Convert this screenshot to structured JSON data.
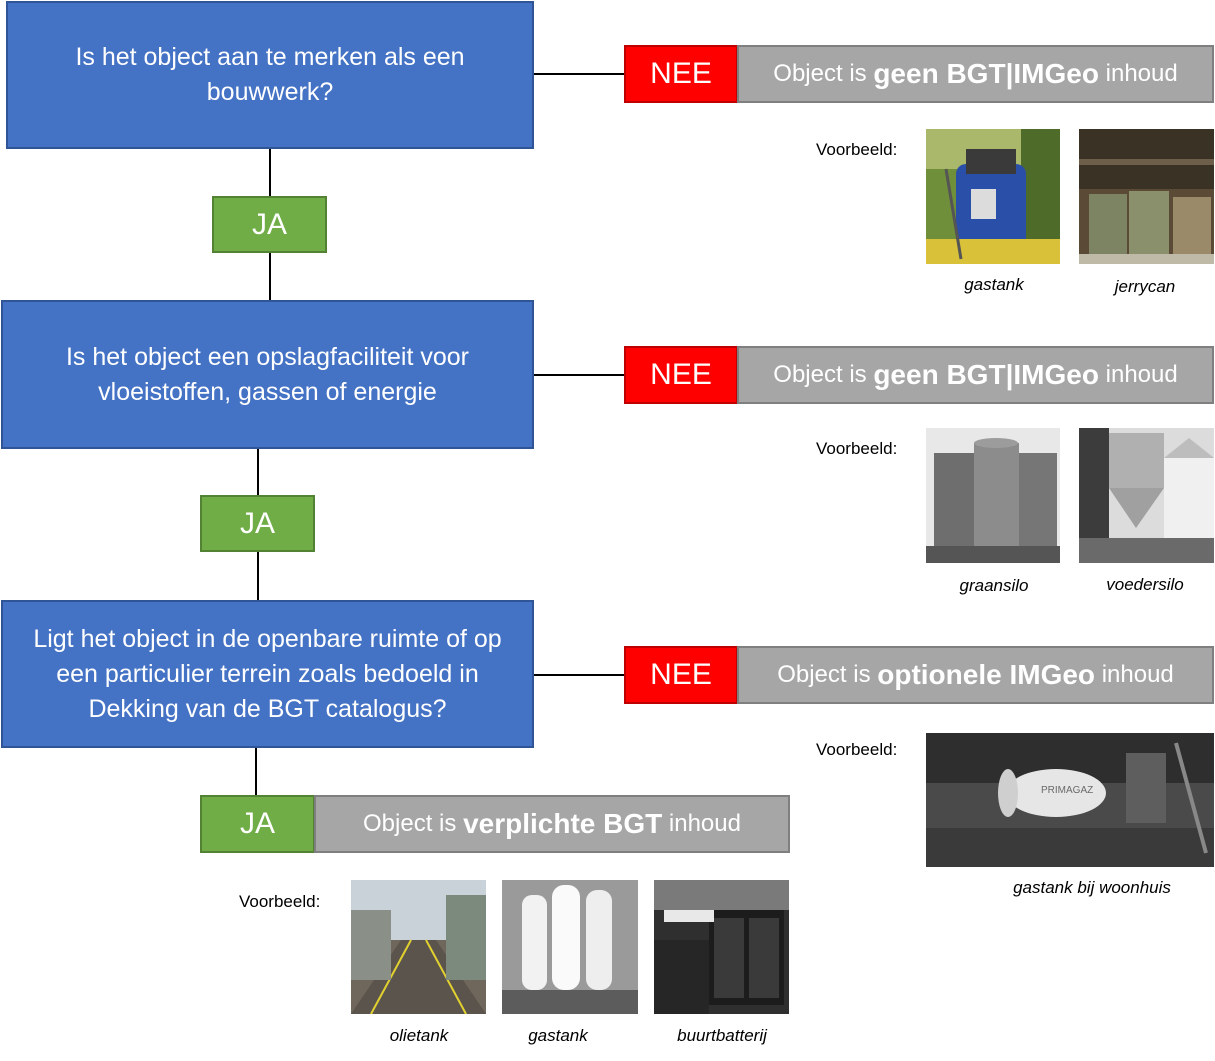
{
  "questions": [
    {
      "text": "Is het object aan te merken als een bouwwerk?"
    },
    {
      "text": "Is het object een opslagfaciliteit voor vloeistoffen, gassen of energie"
    },
    {
      "text": "Ligt het object in de openbare ruimte of op een particulier terrein zoals bedoeld in Dekking van de BGT catalogus?"
    }
  ],
  "ja_label": "JA",
  "nee_label": "NEE",
  "results": [
    {
      "prefix": "Object is",
      "bold": "geen BGT|IMGeo",
      "suffix": "inhoud"
    },
    {
      "prefix": "Object is",
      "bold": "geen BGT|IMGeo",
      "suffix": "inhoud"
    },
    {
      "prefix": "Object is",
      "bold": "optionele IMGeo",
      "suffix": "inhoud"
    },
    {
      "prefix": "Object is",
      "bold": "verplichte BGT",
      "suffix": "inhoud"
    }
  ],
  "voorbeeld_label": "Voorbeeld:",
  "examples": {
    "row1": [
      "gastank",
      "jerrycan"
    ],
    "row2": [
      "graansilo",
      "voedersilo"
    ],
    "row3": [
      "gastank bij woonhuis"
    ],
    "row4": [
      "olietank",
      "gastank",
      "buurtbatterij"
    ]
  },
  "photo_labels": {
    "primagaz": "PRIMAGAZ"
  },
  "colors": {
    "question": "#4472c4",
    "ja": "#70ad47",
    "nee": "#ff0000",
    "result": "#a6a6a6"
  }
}
